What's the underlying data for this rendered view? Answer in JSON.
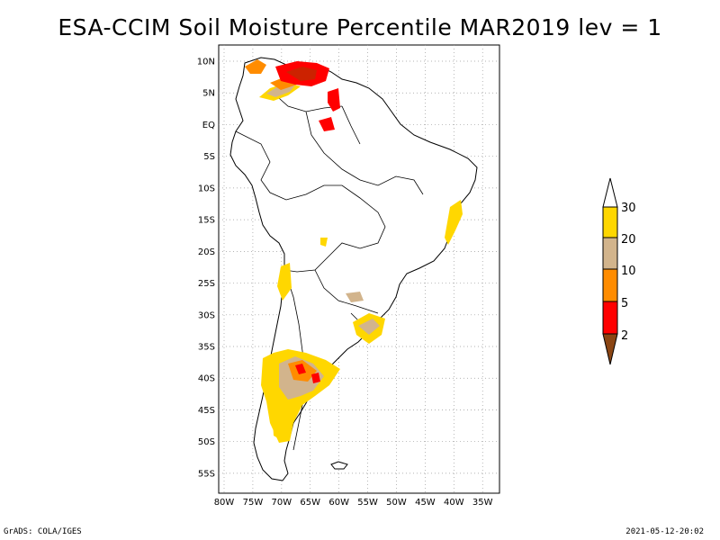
{
  "title": "ESA-CCIM Soil Moisture Percentile MAR2019 lev = 1",
  "map": {
    "lat_labels": [
      "10N",
      "5N",
      "EQ",
      "5S",
      "10S",
      "15S",
      "20S",
      "25S",
      "30S",
      "35S",
      "40S",
      "45S",
      "50S",
      "55S"
    ],
    "lon_labels": [
      "80W",
      "75W",
      "70W",
      "65W",
      "60W",
      "55W",
      "50W",
      "45W",
      "40W",
      "35W"
    ],
    "lat_range": [
      -56,
      12
    ],
    "lon_range": [
      -80,
      -33
    ],
    "grid": true,
    "land_color": "#ffffff",
    "border_color": "#000000"
  },
  "legend": {
    "levels": [
      "2",
      "5",
      "10",
      "20",
      "30"
    ],
    "colors": {
      "below_2": "#8b4513",
      "2_5": "#ff0000",
      "5_10": "#ff8c00",
      "10_20": "#d2b48c",
      "20_30": "#ffd700",
      "above_30": "#ffffff"
    }
  },
  "footer": {
    "left": "GrADS: COLA/IGES",
    "right": "2021-05-12-20:02"
  }
}
